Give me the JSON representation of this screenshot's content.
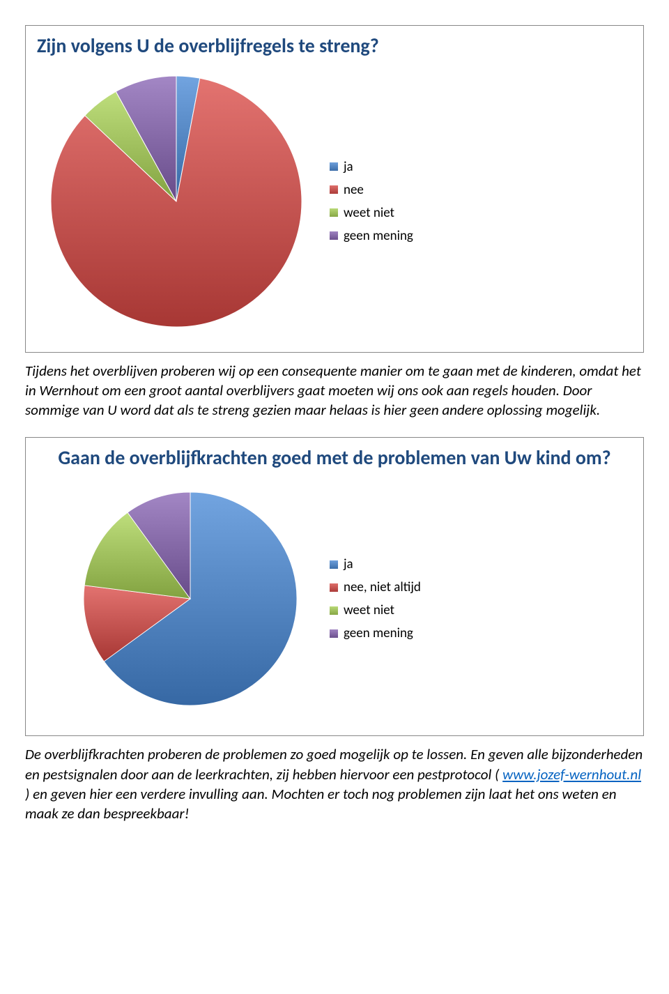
{
  "chart1": {
    "type": "pie",
    "title": "Zijn volgens U de overblijfregels te streng?",
    "title_align": "left",
    "radius": 180,
    "background_color": "#ffffff",
    "border_color": "#888888",
    "slices": [
      {
        "label": "ja",
        "value": 3,
        "color": "#4f81bd"
      },
      {
        "label": "nee",
        "value": 84,
        "color": "#c0504d"
      },
      {
        "label": "weet niet",
        "value": 5,
        "color": "#9bbb59"
      },
      {
        "label": "geen mening",
        "value": 8,
        "color": "#8064a2"
      }
    ],
    "legend": [
      {
        "label": "ja",
        "color": "#4f81bd"
      },
      {
        "label": "nee",
        "color": "#c0504d"
      },
      {
        "label": "weet niet",
        "color": "#9bbb59"
      },
      {
        "label": "geen mening",
        "color": "#8064a2"
      }
    ],
    "legend_fontsize": 19,
    "title_fontsize": 28,
    "title_color": "#1f497d"
  },
  "para1": "Tijdens het overblijven proberen wij op een consequente manier om te gaan met de kinderen, omdat het in Wernhout om een groot aantal overblijvers gaat moeten wij ons ook aan  regels houden. Door sommige van U word dat als te streng gezien maar helaas is hier geen andere oplossing mogelijk.",
  "chart2": {
    "type": "pie",
    "title": "Gaan de overblijfkrachten goed met de problemen van Uw kind om?",
    "title_align": "center",
    "radius": 170,
    "background_color": "#ffffff",
    "border_color": "#888888",
    "slices": [
      {
        "label": "ja",
        "value": 65,
        "color": "#4f81bd"
      },
      {
        "label": "nee, niet altijd",
        "value": 12,
        "color": "#c0504d"
      },
      {
        "label": "weet niet",
        "value": 13,
        "color": "#9bbb59"
      },
      {
        "label": "geen mening",
        "value": 10,
        "color": "#8064a2"
      }
    ],
    "legend": [
      {
        "label": "ja",
        "color": "#4f81bd"
      },
      {
        "label": "nee, niet altijd",
        "color": "#c0504d"
      },
      {
        "label": "weet niet",
        "color": "#9bbb59"
      },
      {
        "label": "geen mening",
        "color": "#8064a2"
      }
    ],
    "legend_fontsize": 19,
    "title_fontsize": 28,
    "title_color": "#1f497d"
  },
  "para2": {
    "t1": "De overblijfkrachten proberen de problemen zo goed mogelijk op te lossen. En geven alle bijzonderheden en pestsignalen door aan de leerkrachten, zij hebben hiervoor een pestprotocol ( ",
    "link": "www.jozef-wernhout.nl",
    "href": "http://www.jozef-wernhout.nl",
    "t2": " ) en geven hier een verdere invulling aan. Mochten er toch nog problemen zijn laat het ons weten en maak ze dan bespreekbaar!"
  }
}
